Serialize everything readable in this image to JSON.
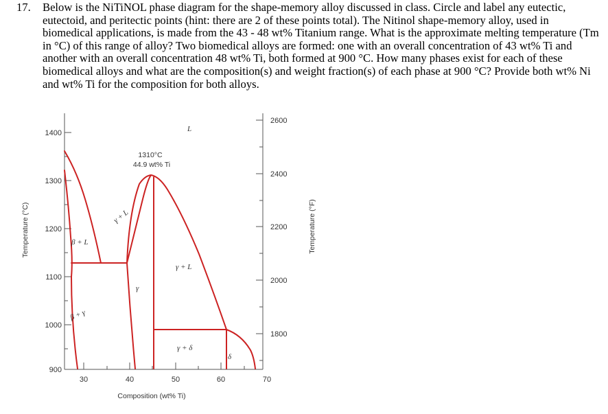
{
  "question": {
    "number": "17.",
    "text": "Below is the NiTiNOL phase diagram for the shape-memory alloy discussed in class. Circle and label any eutectic, eutectoid, and peritectic points (hint: there are 2 of these points total). The Nitinol shape-memory alloy, used in biomedical applications, is made from the 43 - 48 wt% Titanium range. What is the approximate melting temperature (Tm in °C) of this range of alloy? Two biomedical alloys are formed: one with an overall concentration of 43 wt% Ti and another with an overall concentration 48 wt% Ti, both formed at 900 °C. How many phases exist for each of these biomedical alloys and what are the composition(s) and weight fraction(s) of each phase at 900 °C? Provide both wt% Ni and wt% Ti for the composition for both alloys."
  },
  "diagram": {
    "x_axis": {
      "title": "Composition (wt% Ti)",
      "ticks": [
        "30",
        "40",
        "50",
        "60",
        "70"
      ]
    },
    "y_axis_left": {
      "title": "Temperature (°C)",
      "ticks": [
        "1400",
        "1300",
        "1200",
        "1100",
        "1000",
        "900"
      ]
    },
    "y_axis_right": {
      "title": "Temperature (°F)",
      "ticks": [
        "2600",
        "2400",
        "2200",
        "2000",
        "1800"
      ]
    },
    "point_annotation": {
      "temperature": "1310°C",
      "composition": "44.9 wt% Ti"
    },
    "region_labels": {
      "liquid": "L",
      "gamma_liquid_upper": "γ + L",
      "beta_liquid": "β + L",
      "gamma_liquid_right": "γ + L",
      "gamma": "γ",
      "beta_gamma": "β + γ",
      "gamma_delta": "γ + δ",
      "delta": "δ"
    },
    "line_color": "#cc2222"
  }
}
